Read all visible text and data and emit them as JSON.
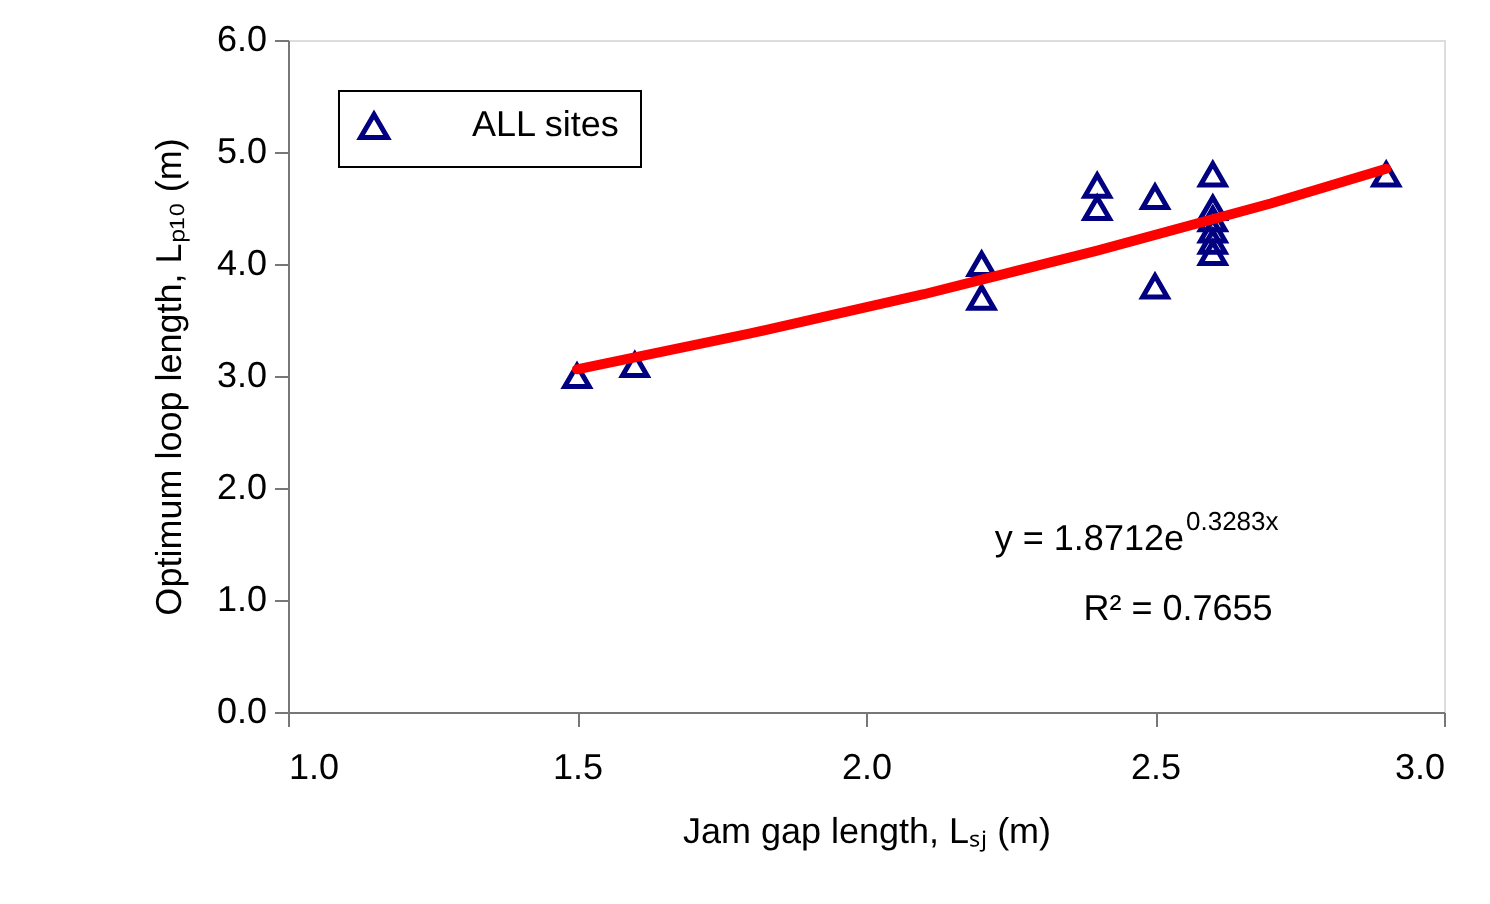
{
  "chart_data": {
    "type": "scatter",
    "xlabel": "Jam gap length, Lₛⱼ (m)",
    "ylabel": "Optimum loop length, Lₚ₁₀ (m)",
    "xlim": [
      1.0,
      3.0
    ],
    "xticks": [
      {
        "value": 1.0,
        "label": "1.0"
      },
      {
        "value": 1.5,
        "label": "1.5"
      },
      {
        "value": 2.0,
        "label": "2.0"
      },
      {
        "value": 2.5,
        "label": "2.5"
      },
      {
        "value": 3.0,
        "label": "3.0"
      }
    ],
    "ylim": [
      0.0,
      6.0
    ],
    "yticks": [
      {
        "value": 0,
        "label": "0.0"
      },
      {
        "value": 1,
        "label": "1.0"
      },
      {
        "value": 2,
        "label": "2.0"
      },
      {
        "value": 3,
        "label": "3.0"
      },
      {
        "value": 4,
        "label": "4.0"
      },
      {
        "value": 5,
        "label": "5.0"
      },
      {
        "value": 6,
        "label": "6.0"
      }
    ],
    "grid": false,
    "legend": "top left",
    "series": [
      {
        "name": "ALL sites",
        "type": "scatter",
        "marker": "triangle",
        "color": "#000080",
        "x": [
          1.5,
          1.6,
          2.2,
          2.2,
          2.4,
          2.4,
          2.5,
          2.5,
          2.6,
          2.6,
          2.6,
          2.6,
          2.6,
          2.6,
          2.9
        ],
        "values": [
          3.0,
          3.1,
          4.0,
          3.7,
          4.7,
          4.5,
          4.6,
          3.8,
          4.8,
          4.5,
          4.4,
          4.3,
          4.2,
          4.1,
          4.8
        ]
      },
      {
        "type": "line",
        "color": "#ff0000",
        "line_style": "solid",
        "x": [
          1.5,
          1.8,
          2.1,
          2.4,
          2.7,
          2.9
        ],
        "values": [
          3.06,
          3.38,
          3.73,
          4.12,
          4.54,
          4.85
        ]
      }
    ],
    "annotations": [
      "y = 1.8712e$^{0.3283x}$",
      "R² = 0.7655"
    ]
  }
}
